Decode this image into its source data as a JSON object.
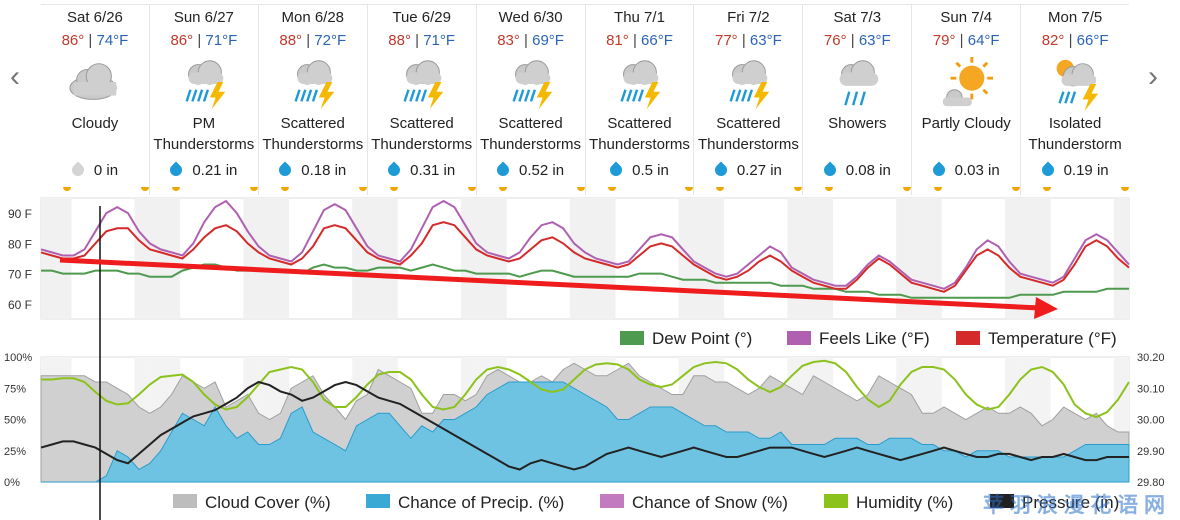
{
  "nav": {
    "prev": "‹",
    "next": "›"
  },
  "days": [
    {
      "name": "Sat 6/26",
      "hi": "86°",
      "lo": "74°F",
      "icon": "cloudy-icon",
      "cond1": "Cloudy",
      "cond2": "",
      "precip": "0 in"
    },
    {
      "name": "Sun 6/27",
      "hi": "86°",
      "lo": "71°F",
      "icon": "thunderstorm-icon",
      "cond1": "PM",
      "cond2": "Thunderstorms",
      "precip": "0.21 in"
    },
    {
      "name": "Mon 6/28",
      "hi": "88°",
      "lo": "72°F",
      "icon": "thunderstorm-icon",
      "cond1": "Scattered",
      "cond2": "Thunderstorms",
      "precip": "0.18 in"
    },
    {
      "name": "Tue 6/29",
      "hi": "88°",
      "lo": "71°F",
      "icon": "thunderstorm-icon",
      "cond1": "Scattered",
      "cond2": "Thunderstorms",
      "precip": "0.31 in"
    },
    {
      "name": "Wed 6/30",
      "hi": "83°",
      "lo": "69°F",
      "icon": "thunderstorm-icon",
      "cond1": "Scattered",
      "cond2": "Thunderstorms",
      "precip": "0.52 in"
    },
    {
      "name": "Thu 7/1",
      "hi": "81°",
      "lo": "66°F",
      "icon": "thunderstorm-icon",
      "cond1": "Scattered",
      "cond2": "Thunderstorms",
      "precip": "0.5 in"
    },
    {
      "name": "Fri 7/2",
      "hi": "77°",
      "lo": "63°F",
      "icon": "thunderstorm-icon",
      "cond1": "Scattered",
      "cond2": "Thunderstorms",
      "precip": "0.27 in"
    },
    {
      "name": "Sat 7/3",
      "hi": "76°",
      "lo": "63°F",
      "icon": "showers-icon",
      "cond1": "Showers",
      "cond2": "",
      "precip": "0.08 in"
    },
    {
      "name": "Sun 7/4",
      "hi": "79°",
      "lo": "64°F",
      "icon": "partly-cloudy-icon",
      "cond1": "Partly Cloudy",
      "cond2": "",
      "precip": "0.03 in"
    },
    {
      "name": "Mon 7/5",
      "hi": "82°",
      "lo": "66°F",
      "icon": "isolated-thunderstorm-icon",
      "cond1": "Isolated",
      "cond2": "Thunderstorm",
      "precip": "0.19 in"
    }
  ],
  "chart_data": [
    {
      "type": "line",
      "yticks": [
        "90 F",
        "80 F",
        "70 F",
        "60 F"
      ],
      "ylim": [
        55,
        95
      ],
      "legend": [
        "Dew Point (°)",
        "Feels Like (°F)",
        "Temperature (°F)"
      ],
      "colors": {
        "dew": "#4e9a4e",
        "feels": "#b060b0",
        "temp": "#d42a2a"
      },
      "x_hours_step": 3,
      "series": [
        {
          "name": "Temperature (°F)",
          "values": [
            77,
            76,
            75,
            75,
            76,
            80,
            84,
            85,
            85,
            81,
            78,
            77,
            76,
            75,
            78,
            82,
            85,
            86,
            84,
            80,
            77,
            75,
            74,
            73,
            75,
            79,
            85,
            86,
            85,
            81,
            77,
            75,
            74,
            73,
            76,
            80,
            86,
            87,
            86,
            82,
            78,
            76,
            75,
            74,
            75,
            78,
            81,
            82,
            80,
            77,
            75,
            74,
            73,
            72,
            73,
            76,
            79,
            80,
            79,
            76,
            73,
            71,
            69,
            68,
            69,
            71,
            74,
            76,
            74,
            71,
            69,
            67,
            66,
            65,
            65,
            68,
            72,
            75,
            73,
            70,
            67,
            66,
            65,
            64,
            66,
            71,
            76,
            78,
            76,
            72,
            69,
            68,
            67,
            66,
            68,
            73,
            79,
            81,
            79,
            75,
            72
          ]
        },
        {
          "name": "Feels Like (°F)",
          "values": [
            78,
            77,
            76,
            76,
            78,
            84,
            90,
            92,
            90,
            84,
            80,
            78,
            77,
            76,
            80,
            87,
            92,
            94,
            90,
            84,
            79,
            76,
            75,
            74,
            77,
            84,
            91,
            93,
            91,
            85,
            79,
            76,
            75,
            74,
            78,
            85,
            92,
            94,
            92,
            86,
            80,
            77,
            76,
            75,
            77,
            82,
            86,
            87,
            85,
            80,
            77,
            75,
            74,
            73,
            74,
            78,
            82,
            83,
            82,
            78,
            74,
            72,
            70,
            69,
            70,
            73,
            76,
            79,
            77,
            72,
            70,
            68,
            67,
            66,
            66,
            69,
            73,
            76,
            74,
            71,
            68,
            67,
            66,
            65,
            67,
            72,
            78,
            81,
            79,
            74,
            70,
            69,
            68,
            67,
            69,
            75,
            81,
            83,
            81,
            77,
            73
          ]
        },
        {
          "name": "Dew Point (°)",
          "values": [
            71,
            71,
            70,
            70,
            70,
            71,
            71,
            71,
            70,
            70,
            69,
            69,
            69,
            71,
            72,
            73,
            73,
            72,
            71,
            71,
            71,
            71,
            71,
            71,
            70,
            72,
            73,
            72,
            72,
            71,
            71,
            72,
            72,
            72,
            71,
            72,
            73,
            72,
            71,
            71,
            70,
            70,
            70,
            70,
            69,
            70,
            71,
            71,
            70,
            69,
            69,
            69,
            69,
            69,
            69,
            70,
            70,
            70,
            69,
            68,
            68,
            68,
            67,
            67,
            67,
            67,
            67,
            67,
            66,
            66,
            66,
            65,
            65,
            65,
            64,
            64,
            64,
            63,
            63,
            63,
            62,
            62,
            62,
            62,
            62,
            62,
            62,
            62,
            62,
            62,
            63,
            63,
            63,
            63,
            64,
            64,
            64,
            64,
            65,
            65,
            65
          ]
        }
      ]
    },
    {
      "type": "area",
      "yticks_left": [
        "100%",
        "75%",
        "50%",
        "25%",
        "0%"
      ],
      "yticks_right": [
        "30.20",
        "30.10",
        "30.00",
        "29.90",
        "29.80"
      ],
      "ylim_left": [
        0,
        100
      ],
      "ylim_right": [
        29.8,
        30.2
      ],
      "legend": [
        "Cloud Cover (%)",
        "Chance of Precip. (%)",
        "Chance of Snow (%)",
        "Humidity (%)",
        "Pressure (in)"
      ],
      "colors": {
        "cloud": "#bdbdbd",
        "precip": "#3aaad4",
        "snow": "#c37bc0",
        "humidity": "#8cc21c",
        "pressure": "#222222"
      },
      "series": [
        {
          "name": "Cloud Cover (%)",
          "values": [
            85,
            85,
            85,
            85,
            85,
            80,
            80,
            75,
            70,
            60,
            55,
            60,
            70,
            85,
            80,
            75,
            80,
            60,
            65,
            70,
            55,
            50,
            55,
            75,
            80,
            85,
            70,
            60,
            50,
            65,
            70,
            90,
            85,
            80,
            75,
            55,
            55,
            70,
            70,
            65,
            70,
            85,
            90,
            85,
            80,
            80,
            85,
            80,
            90,
            95,
            90,
            85,
            85,
            90,
            95,
            85,
            80,
            75,
            70,
            70,
            85,
            85,
            80,
            80,
            75,
            70,
            75,
            85,
            80,
            75,
            70,
            85,
            80,
            75,
            70,
            65,
            70,
            85,
            80,
            75,
            70,
            55,
            55,
            60,
            55,
            50,
            55,
            60,
            55,
            55,
            60,
            55,
            45,
            50,
            60,
            55,
            50,
            55,
            45,
            40,
            40
          ]
        },
        {
          "name": "Chance of Precip. (%)",
          "values": [
            0,
            0,
            0,
            0,
            0,
            0,
            5,
            25,
            20,
            10,
            15,
            25,
            40,
            55,
            50,
            45,
            60,
            45,
            35,
            40,
            30,
            30,
            35,
            55,
            60,
            40,
            35,
            30,
            25,
            45,
            50,
            55,
            55,
            45,
            35,
            45,
            40,
            50,
            50,
            55,
            60,
            70,
            75,
            80,
            80,
            80,
            80,
            80,
            80,
            75,
            70,
            65,
            60,
            50,
            50,
            55,
            60,
            60,
            60,
            55,
            50,
            45,
            45,
            40,
            40,
            40,
            35,
            35,
            40,
            30,
            30,
            30,
            30,
            35,
            35,
            35,
            30,
            30,
            35,
            35,
            35,
            30,
            30,
            25,
            25,
            20,
            25,
            25,
            25,
            20,
            20,
            20,
            20,
            20,
            20,
            25,
            30,
            30,
            30,
            30,
            30
          ]
        },
        {
          "name": "Chance of Snow (%)",
          "values": []
        },
        {
          "name": "Humidity (%)",
          "values": [
            82,
            82,
            83,
            83,
            80,
            72,
            65,
            62,
            63,
            70,
            78,
            84,
            85,
            86,
            80,
            70,
            62,
            58,
            60,
            68,
            78,
            88,
            90,
            92,
            90,
            80,
            66,
            60,
            60,
            68,
            78,
            86,
            88,
            88,
            82,
            70,
            60,
            58,
            60,
            70,
            82,
            90,
            92,
            90,
            86,
            80,
            74,
            72,
            74,
            82,
            90,
            94,
            95,
            94,
            90,
            82,
            78,
            76,
            78,
            85,
            92,
            95,
            96,
            95,
            90,
            82,
            76,
            72,
            76,
            85,
            93,
            96,
            97,
            95,
            88,
            76,
            66,
            60,
            65,
            78,
            88,
            92,
            92,
            90,
            82,
            70,
            62,
            58,
            60,
            70,
            82,
            90,
            92,
            88,
            78,
            62,
            55,
            52,
            56,
            66,
            80
          ]
        },
        {
          "name": "Pressure (in)",
          "values": [
            29.91,
            29.92,
            29.93,
            29.93,
            29.92,
            29.91,
            29.89,
            29.87,
            29.86,
            29.89,
            29.92,
            29.95,
            29.97,
            29.99,
            30.01,
            30.02,
            30.03,
            30.05,
            30.07,
            30.1,
            30.12,
            30.11,
            30.09,
            30.08,
            30.06,
            30.07,
            30.09,
            30.11,
            30.12,
            30.11,
            30.09,
            30.07,
            30.06,
            30.05,
            30.03,
            30.01,
            29.99,
            29.97,
            29.95,
            29.93,
            29.91,
            29.89,
            29.87,
            29.85,
            29.84,
            29.86,
            29.87,
            29.86,
            29.85,
            29.84,
            29.85,
            29.87,
            29.89,
            29.9,
            29.91,
            29.9,
            29.89,
            29.88,
            29.89,
            29.9,
            29.91,
            29.9,
            29.89,
            29.88,
            29.88,
            29.89,
            29.9,
            29.91,
            29.91,
            29.91,
            29.9,
            29.89,
            29.88,
            29.89,
            29.9,
            29.91,
            29.9,
            29.89,
            29.88,
            29.87,
            29.88,
            29.89,
            29.9,
            29.91,
            29.9,
            29.89,
            29.88,
            29.88,
            29.89,
            29.89,
            29.88,
            29.87,
            29.88,
            29.88,
            29.89,
            29.88,
            29.87,
            29.87,
            29.88,
            29.88,
            29.88
          ]
        }
      ]
    }
  ],
  "watermark": "苹 羽 浪 漫 花 语 网"
}
